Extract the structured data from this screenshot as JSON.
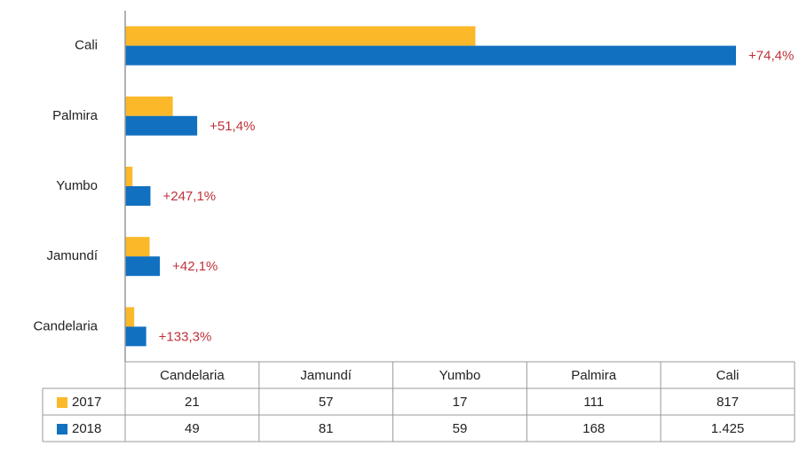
{
  "chart_data": {
    "type": "bar",
    "orientation": "horizontal",
    "categories": [
      "Candelaria",
      "Jamundí",
      "Yumbo",
      "Palmira",
      "Cali"
    ],
    "series": [
      {
        "name": "2017",
        "color": "#fbb829",
        "values": [
          21,
          57,
          17,
          111,
          817
        ]
      },
      {
        "name": "2018",
        "color": "#1170c0",
        "values": [
          49,
          81,
          59,
          168,
          1425
        ],
        "value_labels": [
          "49",
          "81",
          "59",
          "168",
          "1.425"
        ]
      }
    ],
    "annotations": [
      "+133,3%",
      "+42,1%",
      "+247,1%",
      "+51,4%",
      "+74,4%"
    ],
    "annotation_color": "#c0313a",
    "data_table": true
  }
}
